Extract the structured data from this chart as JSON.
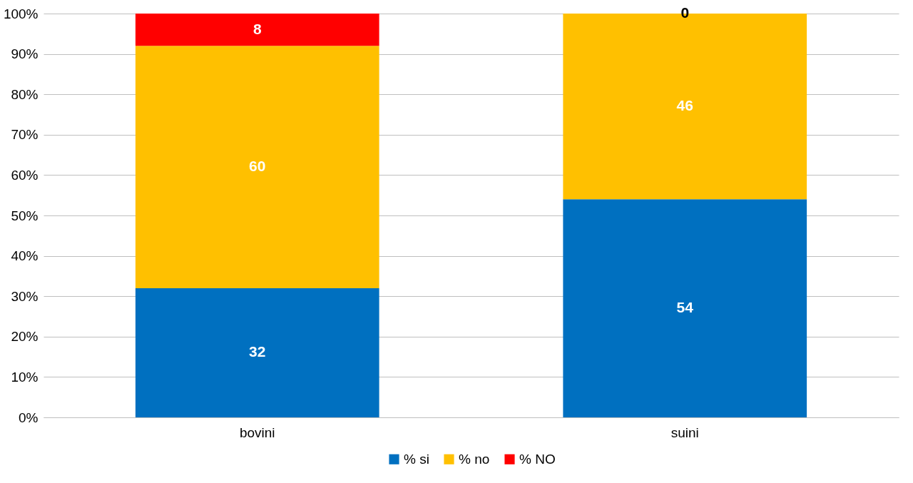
{
  "chart_data": {
    "type": "bar",
    "stacked": true,
    "categories": [
      "bovini",
      "suini"
    ],
    "series": [
      {
        "name": "% si",
        "color": "#0070c0",
        "values": [
          32,
          54
        ]
      },
      {
        "name": "% no",
        "color": "#ffc000",
        "values": [
          60,
          46
        ]
      },
      {
        "name": "% NO",
        "color": "#ff0000",
        "values": [
          8,
          0
        ]
      }
    ],
    "ylim": [
      0,
      100
    ],
    "yticks": [
      {
        "value": 0,
        "label": "0%"
      },
      {
        "value": 10,
        "label": "10%"
      },
      {
        "value": 20,
        "label": "20%"
      },
      {
        "value": 30,
        "label": "30%"
      },
      {
        "value": 40,
        "label": "40%"
      },
      {
        "value": 50,
        "label": "50%"
      },
      {
        "value": 60,
        "label": "60%"
      },
      {
        "value": 70,
        "label": "70%"
      },
      {
        "value": 80,
        "label": "80%"
      },
      {
        "value": 90,
        "label": "90%"
      },
      {
        "value": 100,
        "label": "100%"
      }
    ],
    "grid": "y",
    "legend": "bottom",
    "data_labels": true
  }
}
